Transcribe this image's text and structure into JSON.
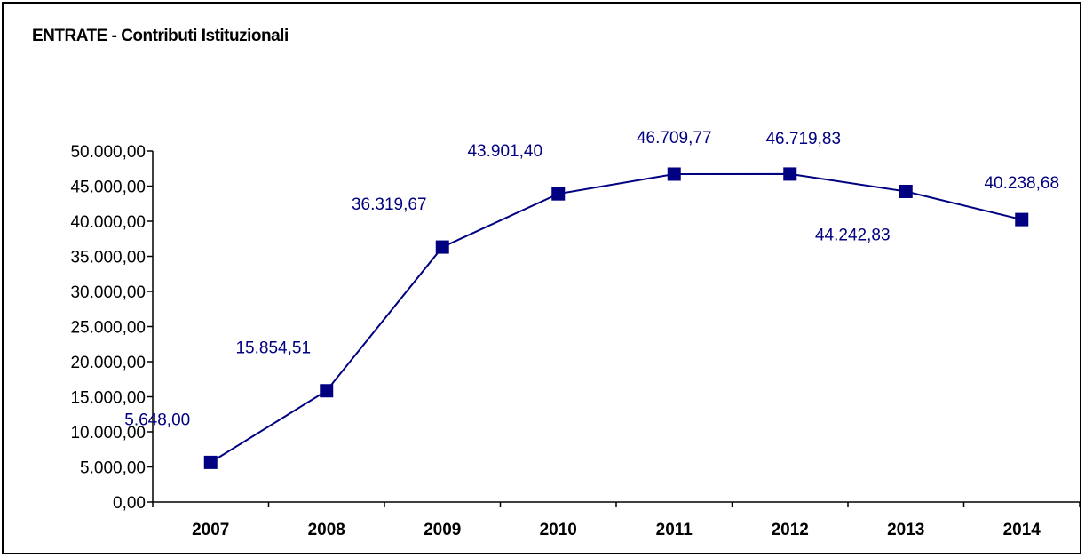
{
  "chart_data": {
    "type": "line",
    "title": "ENTRATE - Contributi Istituzionali",
    "xlabel": "",
    "ylabel": "",
    "categories": [
      "2007",
      "2008",
      "2009",
      "2010",
      "2011",
      "2012",
      "2013",
      "2014"
    ],
    "values": [
      5648.0,
      15854.51,
      36319.67,
      43901.4,
      46709.77,
      46719.83,
      44242.83,
      40238.68
    ],
    "data_labels": [
      "5.648,00",
      "15.854,51",
      "36.319,67",
      "43.901,40",
      "46.709,77",
      "46.719,83",
      "44.242,83",
      "40.238,68"
    ],
    "data_label_placement": [
      "above-left",
      "above-left",
      "above-left",
      "above-left",
      "above",
      "above-right",
      "below-left",
      "above"
    ],
    "ylim": [
      0,
      50000
    ],
    "y_tick_values": [
      0,
      5000,
      10000,
      15000,
      20000,
      25000,
      30000,
      35000,
      40000,
      45000,
      50000
    ],
    "y_tick_labels": [
      "0,00",
      "5.000,00",
      "10.000,00",
      "15.000,00",
      "20.000,00",
      "25.000,00",
      "30.000,00",
      "35.000,00",
      "40.000,00",
      "45.000,00",
      "50.000,00"
    ],
    "grid": false,
    "legend": "none",
    "marker": "square",
    "series_color": "#000080",
    "label_color": "#000080"
  }
}
